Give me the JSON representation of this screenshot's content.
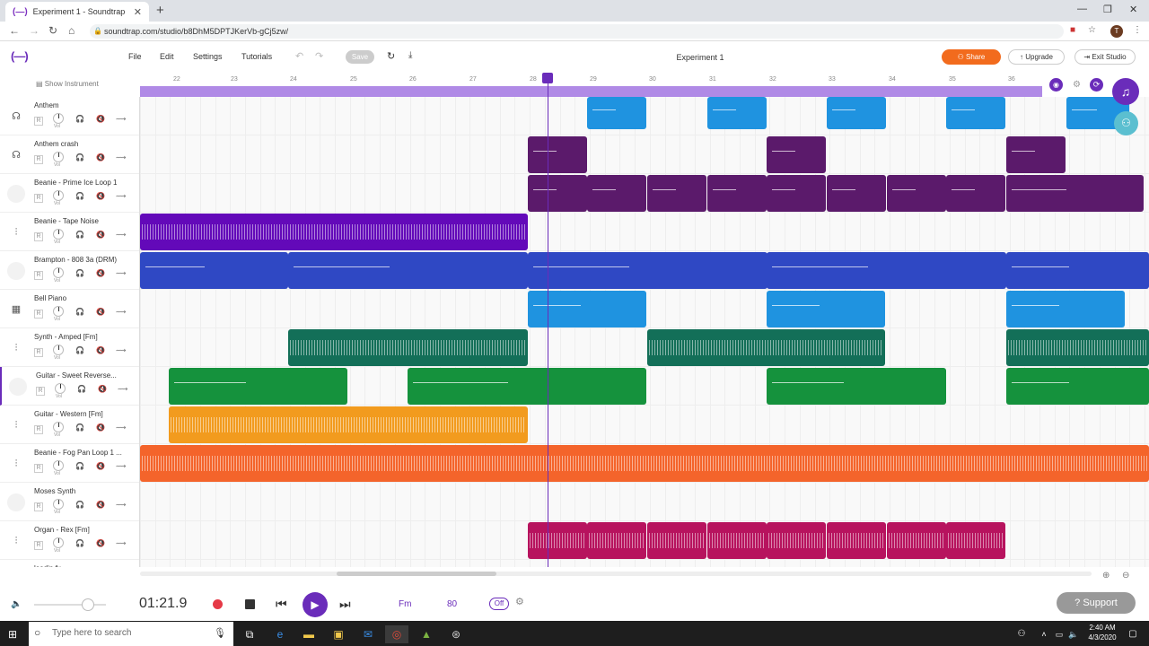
{
  "browser": {
    "tab_title": "Experiment 1 - Soundtrap",
    "url": "soundtrap.com/studio/b8DhM5DPTJKerVb-gCj5zw/",
    "profile_initial": "T"
  },
  "menu": {
    "file": "File",
    "edit": "Edit",
    "settings": "Settings",
    "tutorials": "Tutorials",
    "save": "Save"
  },
  "project_title": "Experiment 1",
  "header_buttons": {
    "share": "Share",
    "upgrade": "Upgrade",
    "exit": "Exit Studio"
  },
  "show_instrument": "Show Instrument",
  "ruler": [
    "22",
    "23",
    "24",
    "25",
    "26",
    "27",
    "28",
    "29",
    "30",
    "31",
    "32",
    "33",
    "34",
    "35",
    "36"
  ],
  "tracks": [
    {
      "name": "Anthem",
      "icon": "drum-icon",
      "color": "#1f93e0"
    },
    {
      "name": "Anthem crash",
      "icon": "drum-icon",
      "color": "#5b1a6b"
    },
    {
      "name": "Beanie - Prime Ice Loop 1",
      "icon": "none",
      "color": "#5b1a6b"
    },
    {
      "name": "Beanie - Tape Noise",
      "icon": "waveform-icon",
      "color": "#6309b9"
    },
    {
      "name": "Brampton - 808 3a (DRM)",
      "icon": "none",
      "color": "#2f48c4"
    },
    {
      "name": "Bell Piano",
      "icon": "keyboard-icon",
      "color": "#1f93e0"
    },
    {
      "name": "Synth - Amped [Fm]",
      "icon": "waveform-icon",
      "color": "#136f58"
    },
    {
      "name": "Guitar - Sweet Reverse...",
      "icon": "none",
      "color": "#15923d"
    },
    {
      "name": "Guitar - Western [Fm]",
      "icon": "waveform-icon",
      "color": "#f29b1e"
    },
    {
      "name": "Beanie - Fog Pan Loop 1 ...",
      "icon": "waveform-icon",
      "color": "#f4642b"
    },
    {
      "name": "Moses Synth",
      "icon": "none",
      "color": "#6a2cba"
    },
    {
      "name": "Organ - Rex [Fm]",
      "icon": "waveform-icon",
      "color": "#b7135e"
    },
    {
      "name": "loadin fx",
      "icon": "none",
      "color": "#2f48c4"
    }
  ],
  "track_controls": {
    "record": "R",
    "volume": "Vol"
  },
  "transport": {
    "time": "01:21.9",
    "key": "Fm",
    "tempo": "80",
    "metronome": "Off"
  },
  "support": "Support",
  "taskbar": {
    "search_placeholder": "Type here to search",
    "time": "2:40 AM",
    "date": "4/3/2020"
  }
}
